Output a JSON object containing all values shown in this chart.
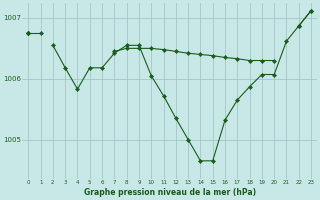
{
  "title": "Graphe pression niveau de la mer (hPa)",
  "background_color": "#c8e8e8",
  "grid_color": "#9bbfbf",
  "line_color": "#1a5c1a",
  "x_values": [
    0,
    1,
    2,
    3,
    4,
    5,
    6,
    7,
    8,
    9,
    10,
    11,
    12,
    13,
    14,
    15,
    16,
    17,
    18,
    19,
    20,
    21,
    22,
    23
  ],
  "series1": [
    1006.75,
    1006.75,
    null,
    null,
    null,
    null,
    null,
    null,
    null,
    null,
    null,
    null,
    null,
    null,
    null,
    null,
    null,
    null,
    null,
    null,
    null,
    null,
    1006.87,
    1007.12
  ],
  "series2": [
    1006.75,
    null,
    1006.55,
    1006.18,
    1005.83,
    1006.18,
    1006.18,
    1006.42,
    1006.55,
    1006.55,
    1006.05,
    1005.72,
    1005.35,
    1005.0,
    1004.65,
    1004.65,
    1005.32,
    1005.65,
    1005.87,
    1006.07,
    1006.07,
    1006.62,
    1006.87,
    1007.12
  ],
  "series3": [
    1006.75,
    null,
    null,
    null,
    null,
    null,
    null,
    1006.45,
    1006.5,
    1006.5,
    1006.5,
    1006.48,
    1006.45,
    1006.42,
    1006.4,
    1006.38,
    1006.35,
    1006.33,
    1006.3,
    1006.3,
    1006.3,
    null,
    null,
    null
  ],
  "ylim": [
    1004.35,
    1007.25
  ],
  "yticks": [
    1005,
    1006,
    1007
  ],
  "xlim": [
    -0.5,
    23.5
  ]
}
